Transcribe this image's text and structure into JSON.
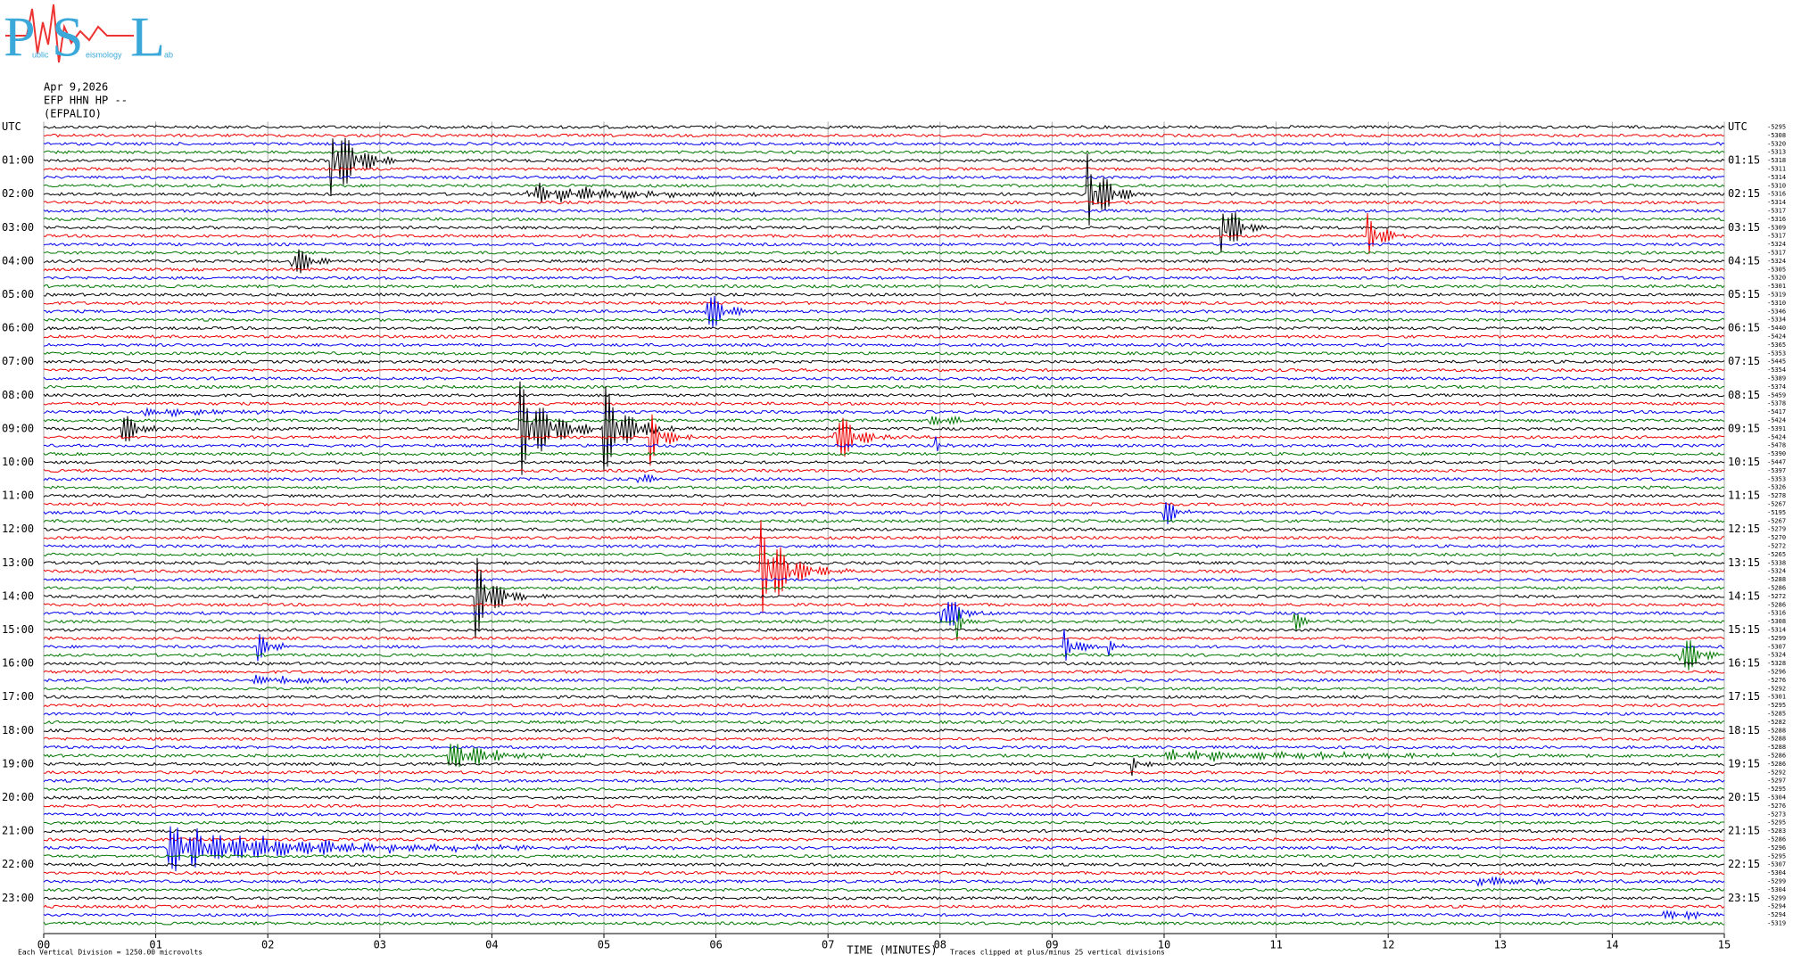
{
  "logo": {
    "letters": [
      "P",
      "S",
      "L"
    ],
    "words": [
      "ublic",
      "eismology",
      "ab"
    ]
  },
  "station": {
    "date": "Apr 9,2026",
    "channel": "EFP HHN HP --",
    "name": "(EFPALIO)"
  },
  "left_labels": [
    "UTC",
    "01:00",
    "02:00",
    "03:00",
    "04:00",
    "05:00",
    "06:00",
    "07:00",
    "08:00",
    "09:00",
    "10:00",
    "11:00",
    "12:00",
    "13:00",
    "14:00",
    "15:00",
    "16:00",
    "17:00",
    "18:00",
    "19:00",
    "20:00",
    "21:00",
    "22:00",
    "23:00"
  ],
  "right_labels": [
    "UTC",
    "01:15",
    "02:15",
    "03:15",
    "04:15",
    "05:15",
    "06:15",
    "07:15",
    "08:15",
    "09:15",
    "10:15",
    "11:15",
    "12:15",
    "13:15",
    "14:15",
    "15:15",
    "16:15",
    "17:15",
    "18:15",
    "19:15",
    "20:15",
    "21:15",
    "22:15",
    "23:15"
  ],
  "trace_offsets": [
    "-5295",
    "-5308",
    "-5320",
    "-5313",
    "-5318",
    "-5311",
    "-5314",
    "-5310",
    "-5316",
    "-5314",
    "-5317",
    "-5316",
    "-5309",
    "-5317",
    "-5324",
    "-5317",
    "-5324",
    "-5305",
    "-5320",
    "-5301",
    "-5319",
    "-5310",
    "-5346",
    "-5334",
    "-5440",
    "-5424",
    "-5365",
    "-5353",
    "-5445",
    "-5354",
    "-5389",
    "-5374",
    "-5459",
    "-5378",
    "-5417",
    "-5424",
    "-5391",
    "-5424",
    "-5478",
    "-5390",
    "-5447",
    "-5397",
    "-5353",
    "-5326",
    "-5278",
    "-5267",
    "-5195",
    "-5267",
    "-5279",
    "-5270",
    "-5272",
    "-5265",
    "-5338",
    "-5324",
    "-5288",
    "-5286",
    "-5272",
    "-5286",
    "-5316",
    "-5308",
    "-5314",
    "-5299",
    "-5307",
    "-5324",
    "-5328",
    "-5296",
    "-5276",
    "-5292",
    "-5301",
    "-5295",
    "-5285",
    "-5282",
    "-5288",
    "-5288",
    "-5288",
    "-5286",
    "-5286",
    "-5292",
    "-5297",
    "-5295",
    "-5304",
    "-5276",
    "-5273",
    "-5295",
    "-5283",
    "-5286",
    "-5296",
    "-5295",
    "-5307",
    "-5304",
    "-5299",
    "-5304",
    "-5299",
    "-5294",
    "-5294",
    "-5319"
  ],
  "x_ticks": [
    "00",
    "01",
    "02",
    "03",
    "04",
    "05",
    "06",
    "07",
    "08",
    "09",
    "10",
    "11",
    "12",
    "13",
    "14",
    "15"
  ],
  "footer": {
    "scale_note": "Each Vertical Division = 1250.00 microvolts",
    "axis_title": "TIME (MINUTES)",
    "clip_note": "Traces clipped at plus/minus 25 vertical divisions"
  }
}
